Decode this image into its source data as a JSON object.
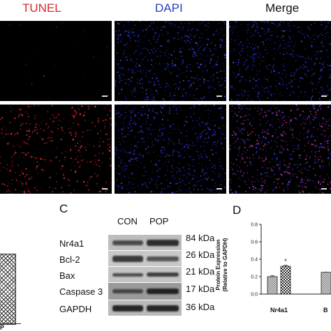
{
  "microscopy": {
    "columns": [
      "TUNEL",
      "DAPI",
      "Merge"
    ],
    "colors": {
      "tunel": "#d8262c",
      "dapi": "#2b3fb8",
      "merge": "#111111"
    }
  },
  "panel_c": {
    "letter": "C",
    "lanes": [
      "CON",
      "POP"
    ],
    "blots": [
      {
        "protein": "Nr4a1",
        "size": "84 kDa"
      },
      {
        "protein": "Bcl-2",
        "size": "26 kDa"
      },
      {
        "protein": "Bax",
        "size": "21 kDa"
      },
      {
        "protein": "Caspase 3",
        "size": "17 kDa"
      },
      {
        "protein": "GAPDH",
        "size": "36 kDa"
      }
    ]
  },
  "panel_d": {
    "letter": "D",
    "significance_mark": "*",
    "partial_category": "B"
  },
  "left_fragment": {
    "text": "P"
  },
  "chart_data": {
    "type": "bar",
    "categories": [
      "Nr4a1"
    ],
    "series": [
      {
        "values": [
          0.2
        ],
        "errors": [
          0.01
        ]
      },
      {
        "values": [
          0.32
        ],
        "errors": [
          0.01
        ]
      }
    ],
    "ylabel": "Protein Expression\n(Relative to GAPDH)",
    "ylim": [
      0,
      0.8
    ],
    "yticks": [
      "0.0",
      "0.2",
      "0.4",
      "0.6",
      "0.8"
    ],
    "annotations": [
      "*"
    ],
    "grid": false
  }
}
